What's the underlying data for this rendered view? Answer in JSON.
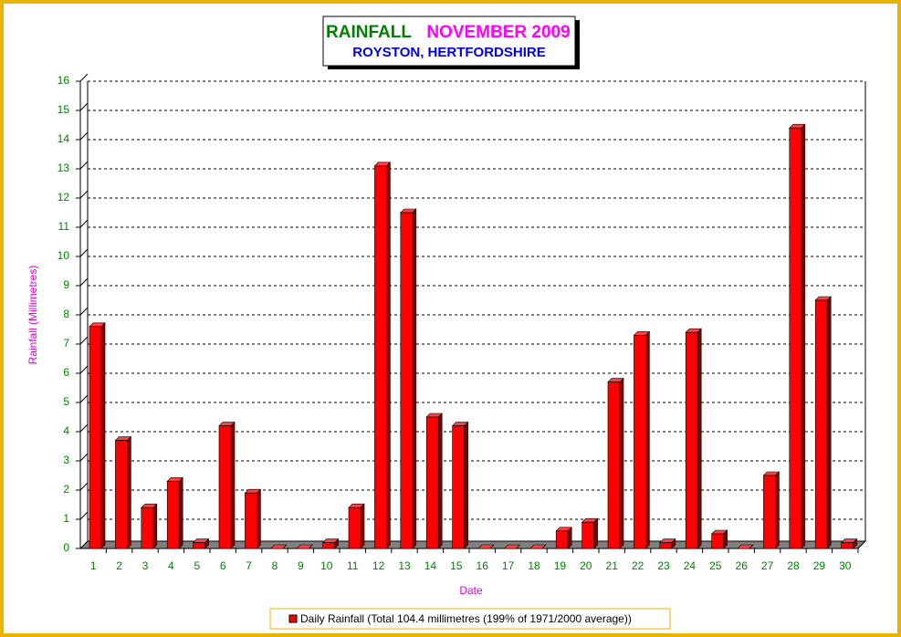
{
  "chart_data": {
    "type": "bar3d",
    "title": "RAINFALL",
    "title_period": "NOVEMBER 2009",
    "subtitle": "ROYSTON, HERTFORDSHIRE",
    "x_label": "Date",
    "y_label": "Rainfall  (Millimetres)",
    "categories": [
      "1",
      "2",
      "3",
      "4",
      "5",
      "6",
      "7",
      "8",
      "9",
      "10",
      "11",
      "12",
      "13",
      "14",
      "15",
      "16",
      "17",
      "18",
      "19",
      "20",
      "21",
      "22",
      "23",
      "24",
      "25",
      "26",
      "27",
      "28",
      "29",
      "30"
    ],
    "series": [
      {
        "name": "Daily Rainfall (Total 104.4 millimetres (199% of 1971/2000 average))",
        "color": "#ff0000",
        "values": [
          7.6,
          3.7,
          1.4,
          2.3,
          0.2,
          4.2,
          1.9,
          0,
          0,
          0.2,
          1.4,
          13.1,
          11.5,
          4.5,
          4.2,
          0,
          0,
          0,
          0.6,
          0.9,
          5.7,
          7.3,
          0.2,
          7.4,
          0.5,
          0,
          2.5,
          14.4,
          8.5,
          0.2
        ]
      }
    ],
    "ylim": [
      0,
      16
    ],
    "yticks": [
      0,
      1,
      2,
      3,
      4,
      5,
      6,
      7,
      8,
      9,
      10,
      11,
      12,
      13,
      14,
      15,
      16
    ],
    "grid": true
  }
}
